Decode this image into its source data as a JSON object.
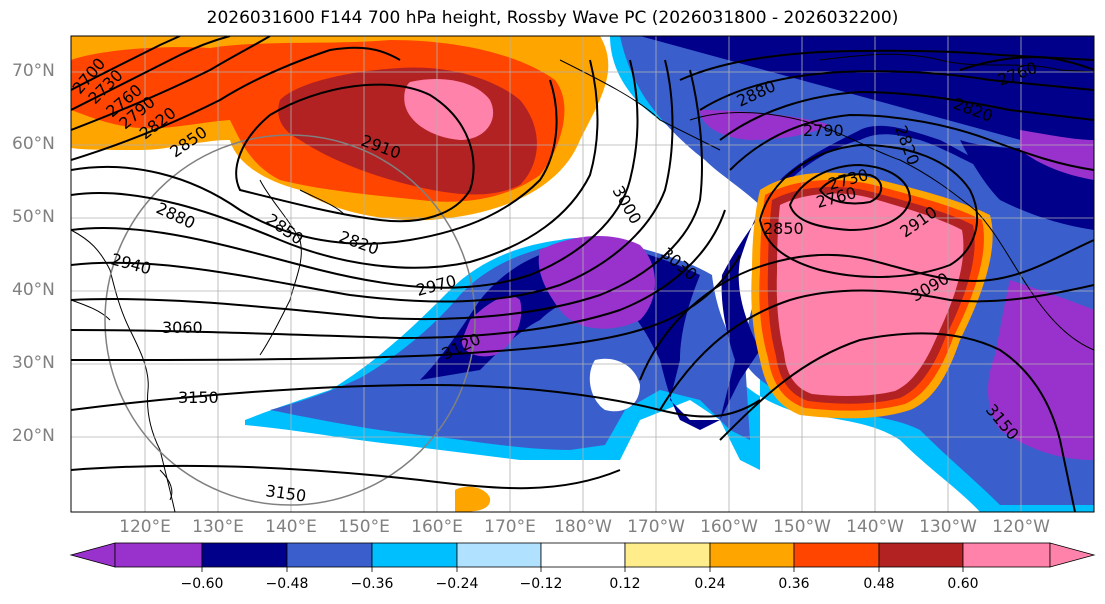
{
  "title": "2026031600 F144 700 hPa height, Rossby Wave PC (2026031800 - 2026032200)",
  "lat_labels": [
    "70°N",
    "60°N",
    "50°N",
    "40°N",
    "30°N",
    "20°N"
  ],
  "lon_labels": [
    "120°E",
    "130°E",
    "140°E",
    "150°E",
    "160°E",
    "170°E",
    "180°W",
    "170°W",
    "160°W",
    "150°W",
    "140°W",
    "130°W",
    "120°W"
  ],
  "contour_labels": [
    "2700",
    "2730",
    "2760",
    "2790",
    "2820",
    "2850",
    "2910",
    "2880",
    "2940",
    "2850",
    "2820",
    "2970",
    "3060",
    "3150",
    "3150",
    "3120",
    "3030",
    "3000",
    "2880",
    "2790",
    "2820",
    "2730",
    "2760",
    "2850",
    "2910",
    "3090",
    "3150",
    "2760",
    "2820"
  ],
  "colorbar": {
    "colors": [
      "#9932cc",
      "#00008b",
      "#3a5fcd",
      "#00bfff",
      "#b0e2ff",
      "#ffffff",
      "#ffec8b",
      "#ffa500",
      "#ff4500",
      "#b22222",
      "#ff82ab"
    ],
    "tick_labels": [
      "−0.60",
      "−0.48",
      "−0.36",
      "−0.24",
      "−0.12",
      "0.12",
      "0.24",
      "0.36",
      "0.48",
      "0.60"
    ]
  }
}
